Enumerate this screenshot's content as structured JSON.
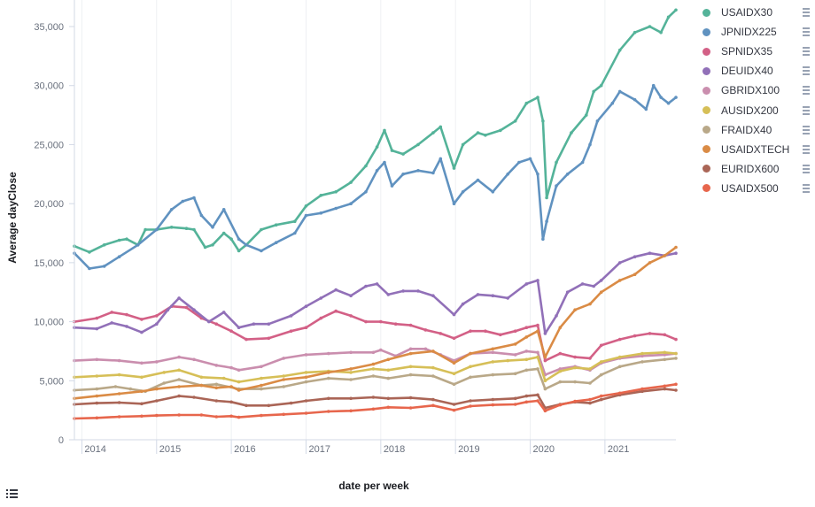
{
  "colors": {
    "USAIDX30": "#54b399",
    "JPNIDX225": "#6092c0",
    "SPNIDX35": "#d36086",
    "DEUIDX40": "#9170b8",
    "GBRIDX100": "#ca8eae",
    "AUSIDX200": "#d6bf57",
    "FRAIDX40": "#b9a888",
    "USAIDXTECH": "#da8b45",
    "EURIDX600": "#aa6556",
    "USAIDX500": "#e7664c"
  },
  "legend": {
    "items": [
      "USAIDX30",
      "JPNIDX225",
      "SPNIDX35",
      "DEUIDX40",
      "GBRIDX100",
      "AUSIDX200",
      "FRAIDX40",
      "USAIDXTECH",
      "EURIDX600",
      "USAIDX500"
    ]
  },
  "chart_data": {
    "type": "line",
    "xlabel": "date per week",
    "ylabel": "Average dayClose",
    "x_range": [
      2013.9,
      2021.95
    ],
    "ylim": [
      0,
      36500
    ],
    "y_ticks": [
      "0",
      "5,000",
      "10,000",
      "15,000",
      "20,000",
      "25,000",
      "30,000",
      "35,000"
    ],
    "y_tick_values": [
      0,
      5000,
      10000,
      15000,
      20000,
      25000,
      30000,
      35000
    ],
    "x_ticks": [
      "2014",
      "2015",
      "2016",
      "2017",
      "2018",
      "2019",
      "2020",
      "2021"
    ],
    "x_tick_values": [
      2014,
      2015,
      2016,
      2017,
      2018,
      2019,
      2020,
      2021
    ],
    "grid": "vertical",
    "legend_position": "right",
    "series": [
      {
        "name": "USAIDX30",
        "x": [
          2013.9,
          2014.1,
          2014.3,
          2014.5,
          2014.6,
          2014.75,
          2014.85,
          2015.0,
          2015.2,
          2015.4,
          2015.5,
          2015.65,
          2015.75,
          2015.9,
          2016.0,
          2016.1,
          2016.2,
          2016.4,
          2016.6,
          2016.85,
          2017.0,
          2017.2,
          2017.4,
          2017.6,
          2017.8,
          2017.95,
          2018.05,
          2018.15,
          2018.3,
          2018.5,
          2018.7,
          2018.8,
          2018.98,
          2019.1,
          2019.3,
          2019.4,
          2019.6,
          2019.8,
          2019.95,
          2020.1,
          2020.17,
          2020.22,
          2020.35,
          2020.55,
          2020.75,
          2020.85,
          2020.95,
          2021.2,
          2021.4,
          2021.6,
          2021.75,
          2021.85,
          2021.95
        ],
        "y": [
          16400,
          15900,
          16500,
          16900,
          17000,
          16500,
          17800,
          17800,
          18000,
          17900,
          17800,
          16300,
          16500,
          17500,
          17000,
          16000,
          16500,
          17800,
          18200,
          18500,
          19800,
          20700,
          21000,
          21800,
          23200,
          24800,
          26200,
          24500,
          24200,
          25000,
          26000,
          26500,
          23000,
          25000,
          26000,
          25800,
          26200,
          27000,
          28500,
          29000,
          27000,
          20500,
          23500,
          26000,
          27500,
          29500,
          30000,
          33000,
          34500,
          35000,
          34500,
          35800,
          36400
        ]
      },
      {
        "name": "JPNIDX225",
        "x": [
          2013.9,
          2014.1,
          2014.3,
          2014.5,
          2014.75,
          2015.0,
          2015.2,
          2015.35,
          2015.5,
          2015.6,
          2015.75,
          2015.9,
          2016.1,
          2016.2,
          2016.4,
          2016.6,
          2016.85,
          2017.0,
          2017.2,
          2017.4,
          2017.6,
          2017.8,
          2017.95,
          2018.05,
          2018.15,
          2018.3,
          2018.5,
          2018.7,
          2018.8,
          2018.98,
          2019.1,
          2019.3,
          2019.5,
          2019.7,
          2019.85,
          2020.0,
          2020.1,
          2020.17,
          2020.22,
          2020.35,
          2020.5,
          2020.7,
          2020.8,
          2020.9,
          2021.1,
          2021.2,
          2021.4,
          2021.55,
          2021.65,
          2021.75,
          2021.85,
          2021.95
        ],
        "y": [
          15800,
          14500,
          14700,
          15500,
          16500,
          17800,
          19500,
          20200,
          20500,
          19000,
          18000,
          19500,
          17000,
          16500,
          16000,
          16700,
          17500,
          19000,
          19200,
          19600,
          20000,
          21000,
          22800,
          23500,
          21500,
          22500,
          22800,
          22600,
          23800,
          20000,
          21000,
          22000,
          21000,
          22500,
          23500,
          23800,
          22500,
          17000,
          18500,
          21500,
          22500,
          23500,
          25000,
          27000,
          28500,
          29500,
          28800,
          28000,
          30000,
          29000,
          28500,
          29000
        ]
      },
      {
        "name": "SPNIDX35",
        "x": [
          2013.9,
          2014.2,
          2014.4,
          2014.6,
          2014.8,
          2015.0,
          2015.2,
          2015.4,
          2015.6,
          2015.8,
          2016.0,
          2016.2,
          2016.5,
          2016.8,
          2017.0,
          2017.2,
          2017.4,
          2017.6,
          2017.8,
          2018.0,
          2018.2,
          2018.4,
          2018.6,
          2018.8,
          2018.98,
          2019.2,
          2019.4,
          2019.6,
          2019.8,
          2019.95,
          2020.1,
          2020.2,
          2020.4,
          2020.6,
          2020.8,
          2020.95,
          2021.2,
          2021.4,
          2021.6,
          2021.8,
          2021.95
        ],
        "y": [
          10000,
          10300,
          10800,
          10600,
          10200,
          10500,
          11300,
          11200,
          10300,
          9800,
          9200,
          8500,
          8600,
          9200,
          9500,
          10300,
          10900,
          10500,
          10000,
          10000,
          9800,
          9700,
          9300,
          9000,
          8600,
          9200,
          9200,
          8900,
          9200,
          9500,
          9700,
          6700,
          7300,
          7000,
          6900,
          8000,
          8500,
          8800,
          9000,
          8900,
          8500
        ]
      },
      {
        "name": "DEUIDX40",
        "x": [
          2013.9,
          2014.2,
          2014.4,
          2014.6,
          2014.8,
          2015.0,
          2015.15,
          2015.3,
          2015.5,
          2015.7,
          2015.9,
          2016.1,
          2016.3,
          2016.5,
          2016.8,
          2017.0,
          2017.2,
          2017.4,
          2017.6,
          2017.8,
          2017.95,
          2018.1,
          2018.3,
          2018.5,
          2018.7,
          2018.98,
          2019.1,
          2019.3,
          2019.5,
          2019.7,
          2019.95,
          2020.1,
          2020.2,
          2020.35,
          2020.5,
          2020.7,
          2020.85,
          2020.95,
          2021.2,
          2021.4,
          2021.6,
          2021.8,
          2021.95
        ],
        "y": [
          9500,
          9400,
          9900,
          9600,
          9100,
          9800,
          11000,
          12000,
          11000,
          10000,
          10800,
          9500,
          9800,
          9800,
          10500,
          11300,
          12000,
          12700,
          12200,
          13000,
          13200,
          12300,
          12600,
          12600,
          12200,
          10600,
          11500,
          12300,
          12200,
          12000,
          13200,
          13500,
          9000,
          10500,
          12500,
          13200,
          13000,
          13500,
          15000,
          15500,
          15800,
          15600,
          15800
        ]
      },
      {
        "name": "GBRIDX100",
        "x": [
          2013.9,
          2014.2,
          2014.5,
          2014.8,
          2015.0,
          2015.3,
          2015.5,
          2015.8,
          2016.0,
          2016.1,
          2016.4,
          2016.7,
          2017.0,
          2017.3,
          2017.6,
          2017.9,
          2018.0,
          2018.2,
          2018.4,
          2018.6,
          2018.8,
          2018.98,
          2019.2,
          2019.5,
          2019.8,
          2019.95,
          2020.1,
          2020.2,
          2020.4,
          2020.6,
          2020.8,
          2020.95,
          2021.2,
          2021.5,
          2021.8,
          2021.95
        ],
        "y": [
          6700,
          6800,
          6700,
          6500,
          6600,
          7000,
          6800,
          6300,
          6100,
          5900,
          6200,
          6900,
          7200,
          7300,
          7400,
          7400,
          7600,
          7100,
          7700,
          7700,
          7200,
          6700,
          7300,
          7400,
          7200,
          7500,
          7400,
          5500,
          6000,
          6200,
          5900,
          6500,
          6900,
          7100,
          7200,
          7300
        ]
      },
      {
        "name": "AUSIDX200",
        "x": [
          2013.9,
          2014.2,
          2014.5,
          2014.8,
          2015.1,
          2015.3,
          2015.6,
          2015.9,
          2016.1,
          2016.4,
          2016.7,
          2017.0,
          2017.3,
          2017.6,
          2017.9,
          2018.1,
          2018.4,
          2018.7,
          2018.98,
          2019.2,
          2019.5,
          2019.7,
          2019.95,
          2020.1,
          2020.2,
          2020.4,
          2020.6,
          2020.8,
          2020.95,
          2021.2,
          2021.5,
          2021.8,
          2021.95
        ],
        "y": [
          5300,
          5400,
          5500,
          5300,
          5700,
          5900,
          5300,
          5200,
          4900,
          5200,
          5400,
          5700,
          5800,
          5700,
          6000,
          5900,
          6200,
          6100,
          5600,
          6200,
          6600,
          6700,
          6800,
          7000,
          5000,
          5800,
          6100,
          6000,
          6600,
          7000,
          7300,
          7400,
          7300
        ]
      },
      {
        "name": "FRAIDX40",
        "x": [
          2013.9,
          2014.2,
          2014.45,
          2014.65,
          2014.85,
          2015.1,
          2015.3,
          2015.6,
          2015.8,
          2016.1,
          2016.4,
          2016.7,
          2017.0,
          2017.3,
          2017.6,
          2017.9,
          2018.1,
          2018.4,
          2018.7,
          2018.98,
          2019.2,
          2019.5,
          2019.8,
          2019.95,
          2020.1,
          2020.2,
          2020.4,
          2020.6,
          2020.8,
          2020.95,
          2021.2,
          2021.5,
          2021.8,
          2021.95
        ],
        "y": [
          4200,
          4300,
          4500,
          4300,
          4100,
          4800,
          5100,
          4600,
          4700,
          4300,
          4300,
          4500,
          4900,
          5200,
          5100,
          5400,
          5200,
          5500,
          5400,
          4700,
          5300,
          5500,
          5600,
          5900,
          6000,
          4300,
          4900,
          4900,
          4800,
          5500,
          6200,
          6600,
          6800,
          6900
        ]
      },
      {
        "name": "USAIDXTECH",
        "x": [
          2013.9,
          2014.2,
          2014.5,
          2014.8,
          2015.0,
          2015.3,
          2015.6,
          2015.8,
          2016.0,
          2016.1,
          2016.4,
          2016.7,
          2017.0,
          2017.3,
          2017.6,
          2017.9,
          2018.1,
          2018.4,
          2018.7,
          2018.98,
          2019.2,
          2019.5,
          2019.8,
          2019.95,
          2020.1,
          2020.2,
          2020.4,
          2020.6,
          2020.8,
          2020.95,
          2021.2,
          2021.4,
          2021.6,
          2021.8,
          2021.95
        ],
        "y": [
          3500,
          3700,
          3900,
          4100,
          4300,
          4500,
          4600,
          4400,
          4500,
          4200,
          4600,
          5100,
          5300,
          5700,
          6000,
          6400,
          6800,
          7300,
          7500,
          6500,
          7300,
          7700,
          8100,
          8700,
          9200,
          7000,
          9500,
          11000,
          11500,
          12500,
          13500,
          14000,
          15000,
          15600,
          16300
        ]
      },
      {
        "name": "EURIDX600",
        "x": [
          2013.9,
          2014.2,
          2014.5,
          2014.8,
          2015.0,
          2015.3,
          2015.5,
          2015.8,
          2016.0,
          2016.2,
          2016.5,
          2016.8,
          2017.0,
          2017.3,
          2017.6,
          2017.9,
          2018.1,
          2018.4,
          2018.7,
          2018.98,
          2019.2,
          2019.5,
          2019.8,
          2019.95,
          2020.1,
          2020.2,
          2020.4,
          2020.6,
          2020.8,
          2020.95,
          2021.2,
          2021.5,
          2021.8,
          2021.95
        ],
        "y": [
          3000,
          3100,
          3150,
          3050,
          3300,
          3700,
          3600,
          3300,
          3200,
          2900,
          2900,
          3100,
          3300,
          3500,
          3500,
          3600,
          3500,
          3550,
          3400,
          3000,
          3300,
          3400,
          3500,
          3700,
          3800,
          2700,
          3000,
          3200,
          3100,
          3400,
          3800,
          4100,
          4300,
          4200
        ]
      },
      {
        "name": "USAIDX500",
        "x": [
          2013.9,
          2014.2,
          2014.5,
          2014.8,
          2015.0,
          2015.3,
          2015.6,
          2015.8,
          2016.0,
          2016.1,
          2016.4,
          2016.7,
          2017.0,
          2017.3,
          2017.6,
          2017.9,
          2018.1,
          2018.4,
          2018.7,
          2018.98,
          2019.2,
          2019.5,
          2019.8,
          2019.95,
          2020.1,
          2020.2,
          2020.4,
          2020.6,
          2020.8,
          2020.95,
          2021.2,
          2021.5,
          2021.8,
          2021.95
        ],
        "y": [
          1800,
          1850,
          1950,
          2000,
          2050,
          2100,
          2100,
          1950,
          2000,
          1900,
          2050,
          2150,
          2250,
          2400,
          2450,
          2600,
          2750,
          2700,
          2900,
          2500,
          2850,
          2950,
          3000,
          3200,
          3300,
          2450,
          2950,
          3250,
          3400,
          3700,
          3950,
          4300,
          4550,
          4700
        ]
      }
    ]
  }
}
